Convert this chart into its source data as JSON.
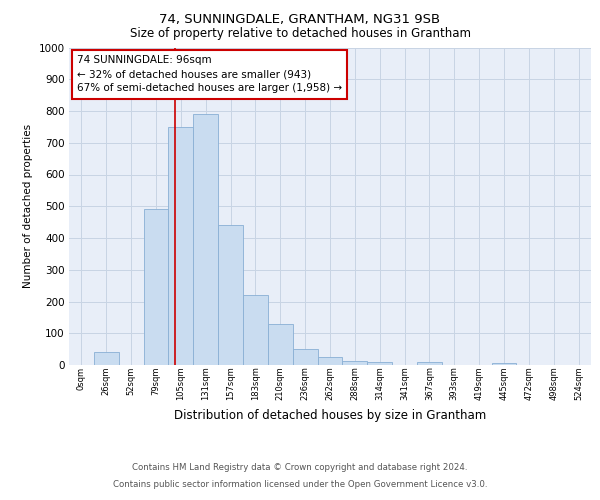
{
  "title": "74, SUNNINGDALE, GRANTHAM, NG31 9SB",
  "subtitle": "Size of property relative to detached houses in Grantham",
  "xlabel": "Distribution of detached houses by size in Grantham",
  "ylabel": "Number of detached properties",
  "bin_labels": [
    "0sqm",
    "26sqm",
    "52sqm",
    "79sqm",
    "105sqm",
    "131sqm",
    "157sqm",
    "183sqm",
    "210sqm",
    "236sqm",
    "262sqm",
    "288sqm",
    "314sqm",
    "341sqm",
    "367sqm",
    "393sqm",
    "419sqm",
    "445sqm",
    "472sqm",
    "498sqm",
    "524sqm"
  ],
  "bar_values": [
    0,
    40,
    0,
    490,
    750,
    790,
    440,
    220,
    130,
    50,
    25,
    12,
    10,
    0,
    8,
    0,
    0,
    7,
    0,
    0,
    0
  ],
  "bar_color": "#c9dcf0",
  "bar_edgecolor": "#89afd4",
  "grid_color": "#c8d4e4",
  "background_color": "#e8eef8",
  "red_line_x": 3.77,
  "annotation_text": "74 SUNNINGDALE: 96sqm\n← 32% of detached houses are smaller (943)\n67% of semi-detached houses are larger (1,958) →",
  "annotation_box_color": "#ffffff",
  "annotation_box_edgecolor": "#cc0000",
  "ylim": [
    0,
    1000
  ],
  "yticks": [
    0,
    100,
    200,
    300,
    400,
    500,
    600,
    700,
    800,
    900,
    1000
  ],
  "footer_line1": "Contains HM Land Registry data © Crown copyright and database right 2024.",
  "footer_line2": "Contains public sector information licensed under the Open Government Licence v3.0."
}
